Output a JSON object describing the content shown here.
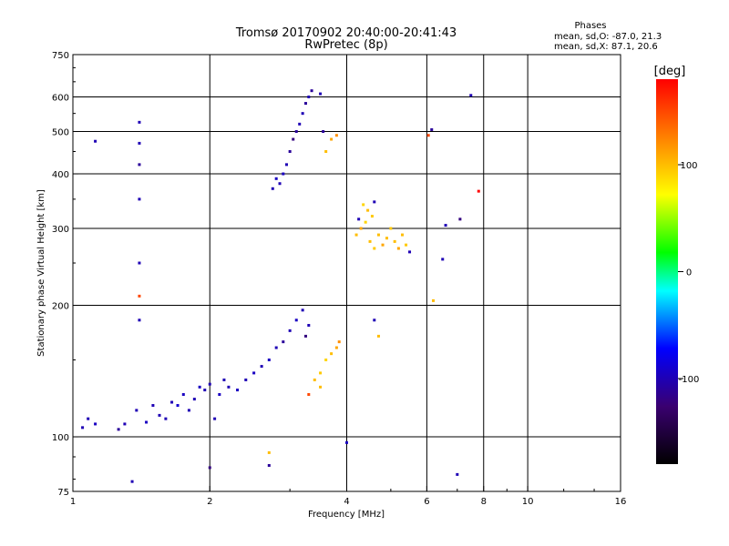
{
  "chart_data": {
    "type": "scatter",
    "title": "Tromsø 20170902 20:40:00-20:41:43",
    "subtitle": "RwPretec (8p)",
    "xlabel": "Frequency [MHz]",
    "ylabel": "Stationary phase Virtual Height [km]",
    "x_scale": "log",
    "y_scale": "log",
    "xlim": [
      1,
      16
    ],
    "ylim": [
      75,
      750
    ],
    "x_ticks": [
      {
        "value": 1,
        "label": "1"
      },
      {
        "value": 2,
        "label": "2"
      },
      {
        "value": 4,
        "label": "4"
      },
      {
        "value": 6,
        "label": "6"
      },
      {
        "value": 8,
        "label": "8"
      },
      {
        "value": 10,
        "label": "10"
      },
      {
        "value": 16,
        "label": "16"
      }
    ],
    "x_gridlines": [
      2,
      4,
      6,
      8,
      10
    ],
    "y_ticks": [
      {
        "value": 75,
        "label": "75"
      },
      {
        "value": 100,
        "label": "100"
      },
      {
        "value": 200,
        "label": "200"
      },
      {
        "value": 300,
        "label": "300"
      },
      {
        "value": 400,
        "label": "400"
      },
      {
        "value": 500,
        "label": "500"
      },
      {
        "value": 600,
        "label": "600"
      },
      {
        "value": 750,
        "label": "750"
      }
    ],
    "y_gridlines": [
      100,
      200,
      300,
      400,
      500,
      600
    ],
    "grid": true,
    "legend": {
      "title": "Phases",
      "lines": [
        "mean, sd,O: -87.0, 21.3",
        "mean, sd,X:  87.1, 20.6"
      ],
      "placement": "top-right"
    },
    "colorbar": {
      "label": "[deg]",
      "range": [
        -180,
        180
      ],
      "ticks": [
        {
          "value": 100,
          "label": "100"
        },
        {
          "value": 0,
          "label": "0"
        },
        {
          "value": -100,
          "label": "-100"
        }
      ]
    },
    "points": [
      [
        1.05,
        105,
        -100
      ],
      [
        1.08,
        110,
        -100
      ],
      [
        1.12,
        107,
        -95
      ],
      [
        1.26,
        104,
        -110
      ],
      [
        1.3,
        107,
        -100
      ],
      [
        1.38,
        115,
        -100
      ],
      [
        1.45,
        108,
        -95
      ],
      [
        1.5,
        118,
        -100
      ],
      [
        1.55,
        112,
        -100
      ],
      [
        1.6,
        110,
        -100
      ],
      [
        1.65,
        120,
        -100
      ],
      [
        1.7,
        118,
        -90
      ],
      [
        1.75,
        125,
        -95
      ],
      [
        1.8,
        115,
        -100
      ],
      [
        1.85,
        122,
        -100
      ],
      [
        1.9,
        130,
        -95
      ],
      [
        1.95,
        128,
        -100
      ],
      [
        2.0,
        132,
        -100
      ],
      [
        2.05,
        110,
        -100
      ],
      [
        2.1,
        125,
        -95
      ],
      [
        2.15,
        135,
        -100
      ],
      [
        2.2,
        130,
        -100
      ],
      [
        2.3,
        128,
        -95
      ],
      [
        2.4,
        135,
        -100
      ],
      [
        2.5,
        140,
        -95
      ],
      [
        2.6,
        145,
        -100
      ],
      [
        2.7,
        150,
        -95
      ],
      [
        2.8,
        160,
        -100
      ],
      [
        2.9,
        165,
        -110
      ],
      [
        3.0,
        175,
        -100
      ],
      [
        3.1,
        185,
        -95
      ],
      [
        3.2,
        195,
        -100
      ],
      [
        3.25,
        170,
        -120
      ],
      [
        3.3,
        180,
        -100
      ],
      [
        3.4,
        135,
        100
      ],
      [
        3.5,
        140,
        95
      ],
      [
        3.6,
        150,
        90
      ],
      [
        3.7,
        155,
        100
      ],
      [
        3.8,
        160,
        110
      ],
      [
        3.85,
        165,
        120
      ],
      [
        3.3,
        125,
        150
      ],
      [
        3.5,
        130,
        100
      ],
      [
        2.75,
        370,
        -100
      ],
      [
        2.8,
        390,
        -95
      ],
      [
        2.85,
        380,
        -100
      ],
      [
        2.9,
        400,
        -95
      ],
      [
        2.95,
        420,
        -100
      ],
      [
        3.0,
        450,
        -110
      ],
      [
        3.05,
        480,
        -120
      ],
      [
        3.1,
        500,
        -110
      ],
      [
        3.15,
        520,
        -100
      ],
      [
        3.2,
        550,
        -100
      ],
      [
        3.25,
        580,
        -110
      ],
      [
        3.3,
        600,
        -100
      ],
      [
        3.35,
        620,
        -110
      ],
      [
        3.5,
        610,
        -100
      ],
      [
        3.55,
        500,
        -110
      ],
      [
        3.6,
        450,
        100
      ],
      [
        3.7,
        480,
        110
      ],
      [
        3.8,
        490,
        120
      ],
      [
        4.2,
        290,
        100
      ],
      [
        4.3,
        300,
        110
      ],
      [
        4.4,
        310,
        90
      ],
      [
        4.5,
        280,
        100
      ],
      [
        4.6,
        270,
        95
      ],
      [
        4.7,
        290,
        100
      ],
      [
        4.8,
        275,
        110
      ],
      [
        4.9,
        285,
        100
      ],
      [
        5.0,
        300,
        95
      ],
      [
        5.1,
        280,
        100
      ],
      [
        5.2,
        270,
        110
      ],
      [
        5.3,
        290,
        100
      ],
      [
        5.4,
        275,
        95
      ],
      [
        5.5,
        265,
        -100
      ],
      [
        4.35,
        340,
        90
      ],
      [
        4.45,
        330,
        100
      ],
      [
        4.55,
        320,
        95
      ],
      [
        4.25,
        315,
        -100
      ],
      [
        4.6,
        345,
        -100
      ],
      [
        1.4,
        525,
        -100
      ],
      [
        1.4,
        470,
        -100
      ],
      [
        1.4,
        420,
        -110
      ],
      [
        1.4,
        350,
        -100
      ],
      [
        1.4,
        250,
        -100
      ],
      [
        1.4,
        210,
        150
      ],
      [
        1.4,
        185,
        -100
      ],
      [
        1.12,
        475,
        -100
      ],
      [
        2.0,
        85,
        -120
      ],
      [
        2.7,
        92,
        100
      ],
      [
        2.7,
        86,
        -110
      ],
      [
        4.0,
        97,
        -95
      ],
      [
        4.6,
        185,
        -100
      ],
      [
        4.7,
        170,
        100
      ],
      [
        6.05,
        490,
        150
      ],
      [
        6.15,
        505,
        -110
      ],
      [
        6.5,
        255,
        -100
      ],
      [
        6.2,
        205,
        100
      ],
      [
        6.6,
        305,
        -100
      ],
      [
        7.1,
        315,
        -120
      ],
      [
        7.5,
        605,
        -100
      ],
      [
        7.8,
        365,
        180
      ],
      [
        7.0,
        82,
        -100
      ],
      [
        1.35,
        79,
        -100
      ]
    ]
  }
}
